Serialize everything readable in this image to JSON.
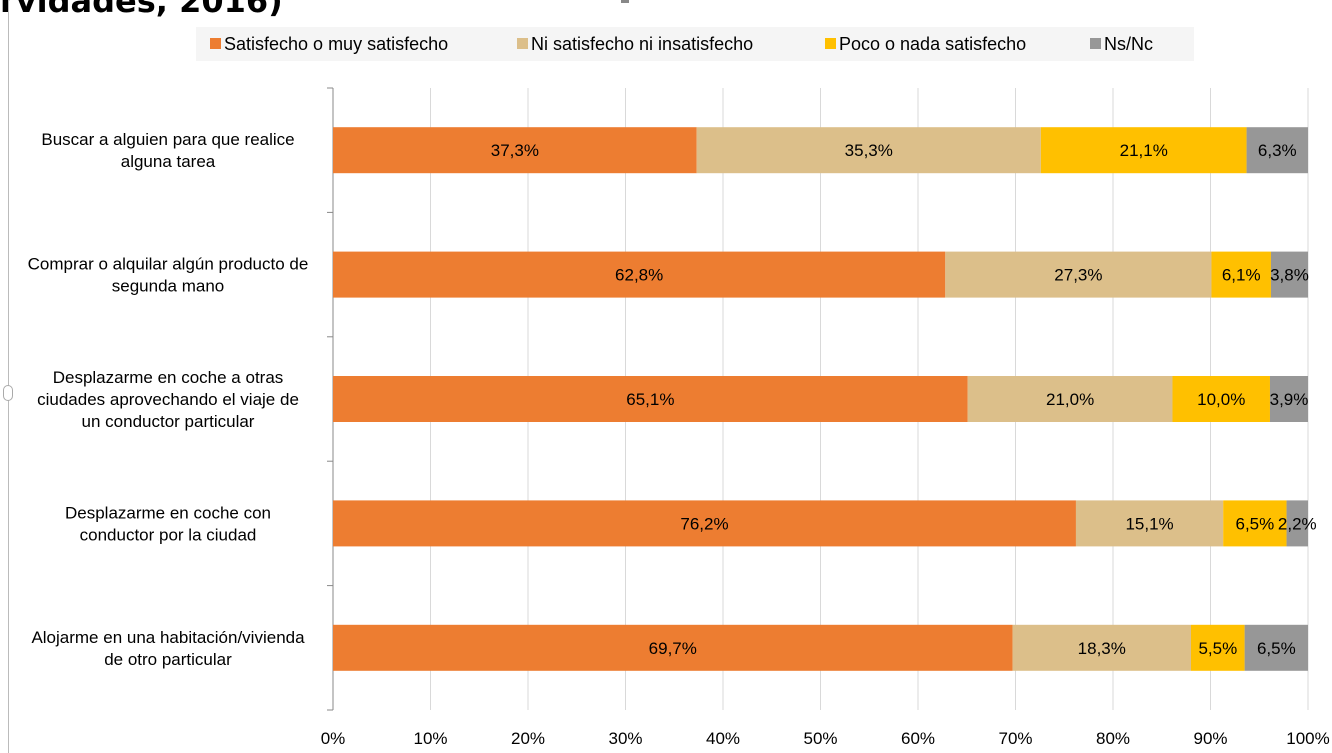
{
  "title_fragment": "rvidades, 2016)",
  "chart_data": {
    "type": "bar",
    "orientation": "horizontal",
    "stacked": "percent",
    "categories": [
      [
        "Buscar a alguien para que realice",
        "alguna tarea"
      ],
      [
        "Comprar o alquilar algún producto de",
        "segunda mano"
      ],
      [
        "Desplazarme en coche a otras",
        "ciudades aprovechando el viaje de",
        "un conductor particular"
      ],
      [
        "Desplazarme en coche con",
        "conductor por la ciudad"
      ],
      [
        "Alojarme en una habitación/vivienda",
        "de otro particular"
      ]
    ],
    "series": [
      {
        "name": "Satisfecho o muy satisfecho",
        "color": "#ed7d31",
        "values": [
          37.3,
          62.8,
          65.1,
          76.2,
          69.7
        ],
        "labels": [
          "37,3%",
          "62,8%",
          "65,1%",
          "76,2%",
          "69,7%"
        ]
      },
      {
        "name": "Ni satisfecho ni insatisfecho",
        "color": "#dcbf8a",
        "values": [
          35.3,
          27.3,
          21.0,
          15.1,
          18.3
        ],
        "labels": [
          "35,3%",
          "27,3%",
          "21,0%",
          "15,1%",
          "18,3%"
        ]
      },
      {
        "name": "Poco o nada satisfecho",
        "color": "#ffc000",
        "values": [
          21.1,
          6.1,
          10.0,
          6.5,
          5.5
        ],
        "labels": [
          "21,1%",
          "6,1%",
          "10,0%",
          "6,5%",
          "5,5%"
        ]
      },
      {
        "name": "Ns/Nc",
        "color": "#979797",
        "values": [
          6.3,
          3.8,
          3.9,
          2.2,
          6.5
        ],
        "labels": [
          "6,3%",
          "3,8%",
          "3,9%",
          "2,2%",
          "6,5%"
        ]
      }
    ],
    "xlim": [
      0,
      100
    ],
    "xticks": [
      "0%",
      "10%",
      "20%",
      "30%",
      "40%",
      "50%",
      "60%",
      "70%",
      "80%",
      "90%",
      "100%"
    ],
    "grid": true,
    "legend_position": "top"
  }
}
